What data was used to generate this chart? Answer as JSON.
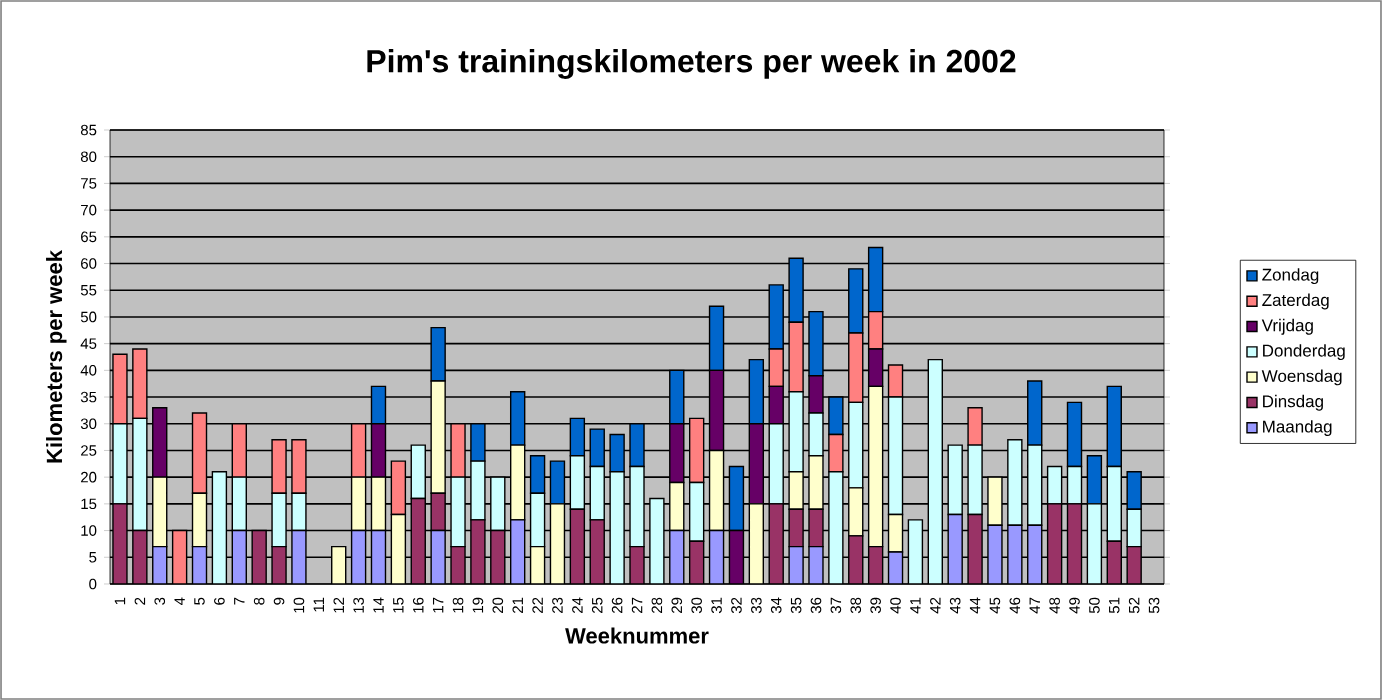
{
  "chart_data": {
    "type": "bar",
    "stacked": true,
    "title": "Pim's  trainingskilometers per week in 2002",
    "xlabel": "Weeknummer",
    "ylabel": "Kilometers per week",
    "categories": [
      "1",
      "2",
      "3",
      "4",
      "5",
      "6",
      "7",
      "8",
      "9",
      "10",
      "11",
      "12",
      "13",
      "14",
      "15",
      "16",
      "17",
      "18",
      "19",
      "20",
      "21",
      "22",
      "23",
      "24",
      "25",
      "26",
      "27",
      "28",
      "29",
      "30",
      "31",
      "32",
      "33",
      "34",
      "35",
      "36",
      "37",
      "38",
      "39",
      "40",
      "41",
      "42",
      "43",
      "44",
      "45",
      "46",
      "47",
      "48",
      "49",
      "50",
      "51",
      "52",
      "53"
    ],
    "ylim": [
      0,
      85
    ],
    "yticks": [
      0,
      5,
      10,
      15,
      20,
      25,
      30,
      35,
      40,
      45,
      50,
      55,
      60,
      65,
      70,
      75,
      80,
      85
    ],
    "grid": "y",
    "legend": "right",
    "series": [
      {
        "name": "Maandag",
        "color": "#9999ff",
        "values": [
          0,
          0,
          7,
          0,
          7,
          0,
          10,
          0,
          0,
          10,
          0,
          0,
          10,
          10,
          0,
          0,
          10,
          0,
          0,
          0,
          12,
          0,
          0,
          0,
          0,
          0,
          0,
          0,
          10,
          0,
          10,
          0,
          0,
          0,
          7,
          7,
          0,
          0,
          0,
          6,
          0,
          0,
          13,
          0,
          11,
          11,
          11,
          0,
          0,
          0,
          0,
          0,
          0
        ]
      },
      {
        "name": "Dinsdag",
        "color": "#993366",
        "values": [
          15,
          10,
          0,
          0,
          0,
          0,
          0,
          10,
          7,
          0,
          0,
          0,
          0,
          0,
          0,
          16,
          7,
          7,
          12,
          10,
          0,
          0,
          0,
          14,
          12,
          0,
          7,
          0,
          0,
          8,
          0,
          0,
          0,
          15,
          7,
          7,
          0,
          9,
          7,
          0,
          0,
          0,
          0,
          13,
          0,
          0,
          0,
          15,
          15,
          0,
          8,
          7,
          0
        ]
      },
      {
        "name": "Woensdag",
        "color": "#ffffcc",
        "values": [
          0,
          0,
          13,
          0,
          10,
          0,
          0,
          0,
          0,
          0,
          0,
          7,
          10,
          10,
          13,
          0,
          21,
          0,
          0,
          0,
          14,
          7,
          15,
          0,
          0,
          0,
          0,
          0,
          9,
          0,
          15,
          0,
          15,
          0,
          7,
          10,
          0,
          9,
          30,
          7,
          0,
          0,
          0,
          0,
          9,
          0,
          0,
          0,
          0,
          0,
          0,
          0,
          0
        ]
      },
      {
        "name": "Donderdag",
        "color": "#ccffff",
        "values": [
          15,
          21,
          0,
          0,
          0,
          21,
          10,
          0,
          10,
          7,
          0,
          0,
          0,
          0,
          0,
          10,
          0,
          13,
          11,
          10,
          0,
          10,
          0,
          10,
          10,
          21,
          15,
          16,
          0,
          11,
          0,
          0,
          0,
          15,
          15,
          8,
          21,
          16,
          0,
          22,
          12,
          42,
          13,
          13,
          0,
          16,
          15,
          7,
          7,
          15,
          14,
          7,
          0
        ]
      },
      {
        "name": "Vrijdag",
        "color": "#660066",
        "values": [
          0,
          0,
          13,
          0,
          0,
          0,
          0,
          0,
          0,
          0,
          0,
          0,
          0,
          10,
          0,
          0,
          0,
          0,
          0,
          0,
          0,
          0,
          0,
          0,
          0,
          0,
          0,
          0,
          11,
          0,
          15,
          10,
          15,
          7,
          0,
          7,
          0,
          0,
          7,
          0,
          0,
          0,
          0,
          0,
          0,
          0,
          0,
          0,
          0,
          0,
          0,
          0,
          0
        ]
      },
      {
        "name": "Zaterdag",
        "color": "#ff8080",
        "values": [
          13,
          13,
          0,
          10,
          15,
          0,
          10,
          0,
          10,
          10,
          0,
          0,
          10,
          0,
          10,
          0,
          0,
          10,
          0,
          0,
          0,
          0,
          0,
          0,
          0,
          0,
          0,
          0,
          0,
          12,
          0,
          0,
          0,
          7,
          13,
          0,
          7,
          13,
          7,
          6,
          0,
          0,
          0,
          7,
          0,
          0,
          0,
          0,
          0,
          0,
          0,
          0,
          0
        ]
      },
      {
        "name": "Zondag",
        "color": "#0066cc",
        "values": [
          0,
          0,
          0,
          0,
          0,
          0,
          0,
          0,
          0,
          0,
          0,
          0,
          0,
          7,
          0,
          0,
          10,
          0,
          7,
          0,
          10,
          7,
          8,
          7,
          7,
          7,
          8,
          0,
          10,
          0,
          12,
          12,
          12,
          12,
          12,
          12,
          7,
          12,
          12,
          0,
          0,
          0,
          0,
          0,
          0,
          0,
          12,
          0,
          12,
          9,
          15,
          7,
          0
        ]
      }
    ]
  }
}
